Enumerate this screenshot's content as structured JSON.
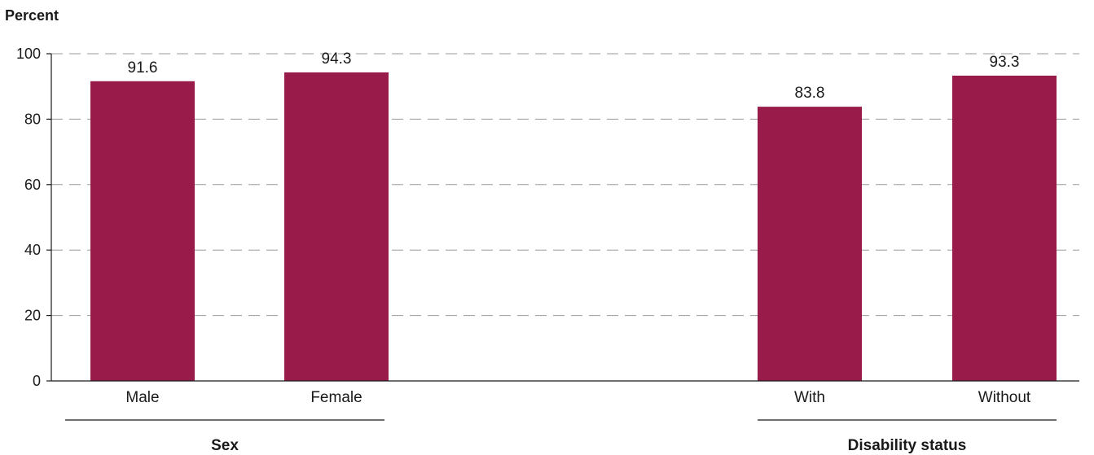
{
  "chart_data": {
    "type": "bar",
    "ylabel": "Percent",
    "ylim": [
      0,
      100
    ],
    "yticks": [
      0,
      20,
      40,
      60,
      80,
      100
    ],
    "grid": true,
    "bar_color": "#981b4a",
    "categories": [
      "Male",
      "Female",
      "With",
      "Without"
    ],
    "values": [
      91.6,
      94.3,
      83.8,
      93.3
    ],
    "value_labels": [
      "91.6",
      "94.3",
      "83.8",
      "93.3"
    ],
    "groups": [
      {
        "label": "Sex",
        "categories": [
          "Male",
          "Female"
        ]
      },
      {
        "label": "Disability status",
        "categories": [
          "With",
          "Without"
        ]
      }
    ]
  }
}
